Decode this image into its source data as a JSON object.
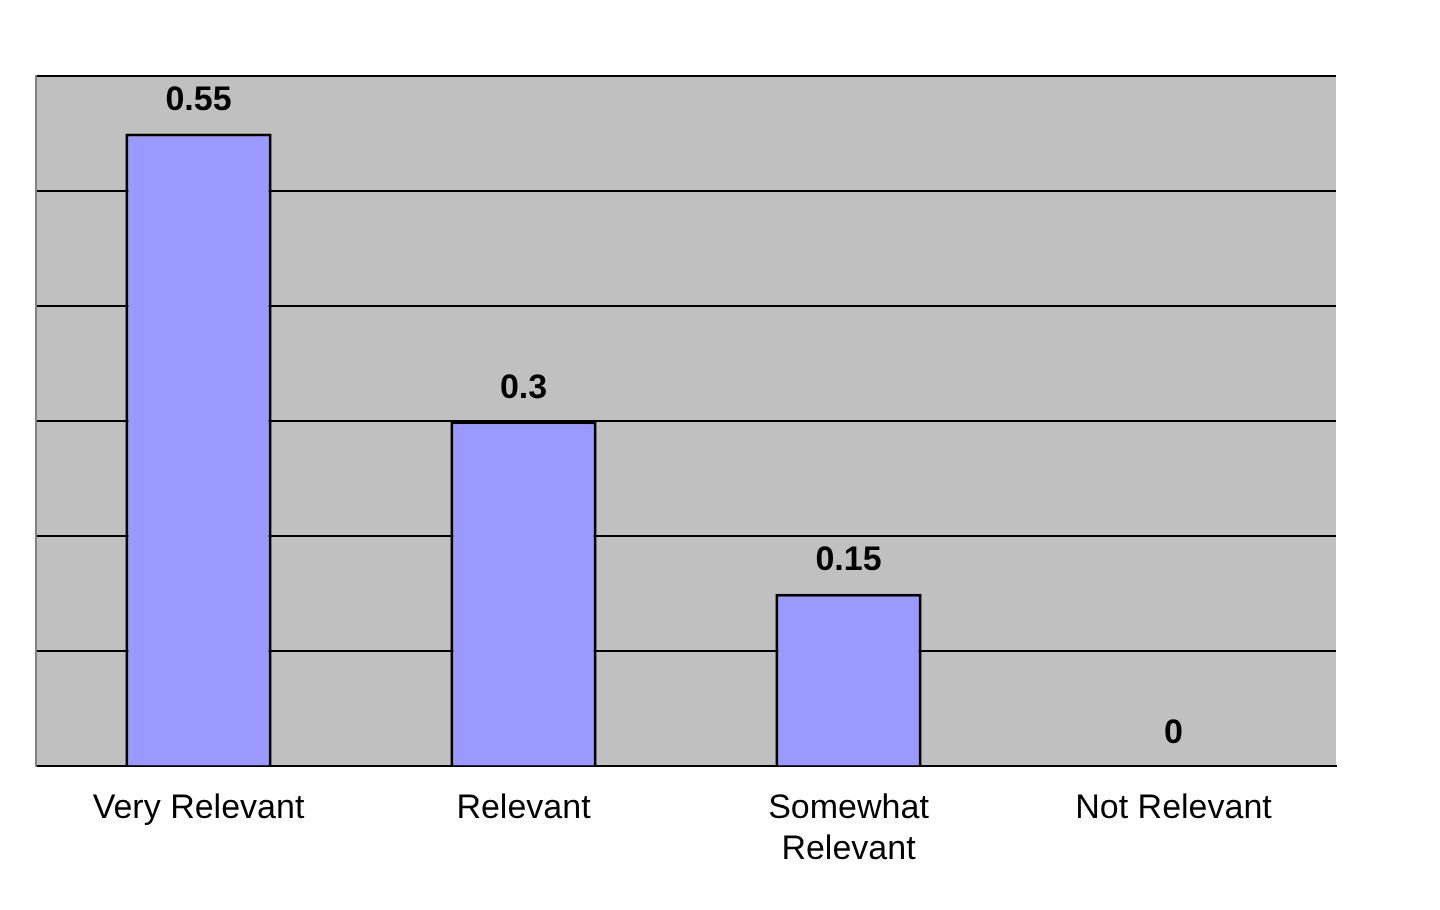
{
  "chart_data": {
    "type": "bar",
    "categories": [
      "Very Relevant",
      "Relevant",
      "Somewhat Relevant",
      "Not Relevant"
    ],
    "values": [
      0.55,
      0.3,
      0.15,
      0
    ],
    "color": "#9999ff",
    "data_labels": true,
    "grid": "y",
    "tick_labels": "x",
    "legend": false,
    "relative": false
  }
}
